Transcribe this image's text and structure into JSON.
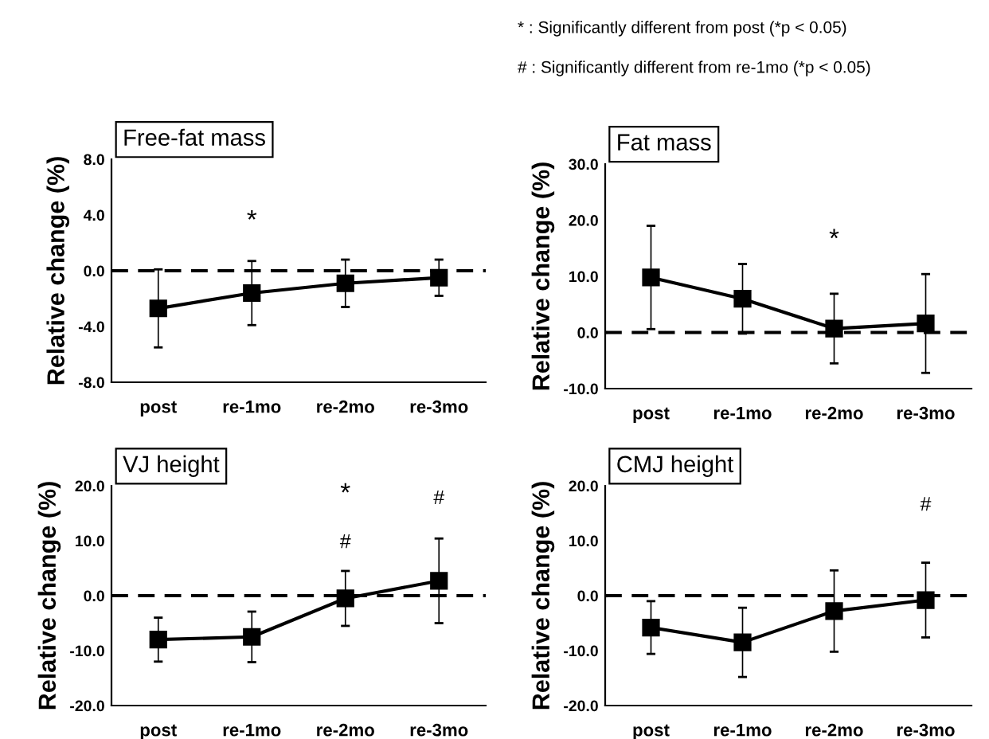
{
  "chart_data": [
    {
      "type": "line",
      "title": "Free-fat mass",
      "ylabel": "Relative change (%)",
      "categories": [
        "post",
        "re-1mo",
        "re-2mo",
        "re-3mo"
      ],
      "series": [
        {
          "color": "#000000",
          "values": [
            -2.7,
            -1.6,
            -0.9,
            -0.5
          ],
          "errors": [
            2.8,
            2.3,
            1.7,
            1.3
          ]
        }
      ],
      "ylim": [
        -8,
        8
      ],
      "yticks": [
        {
          "value": -8,
          "label": "-8.0"
        },
        {
          "value": -4,
          "label": "-4.0"
        },
        {
          "value": 0,
          "label": "0.0"
        },
        {
          "value": 4,
          "label": "4.0"
        },
        {
          "value": 8,
          "label": "8.0"
        }
      ],
      "ref_lines": [
        {
          "axis": "y",
          "value": 0,
          "line_style": "dashed",
          "color": "#000000"
        }
      ],
      "annotations": [
        "*"
      ],
      "marker": "square",
      "line_style": "solid",
      "grid": false
    },
    {
      "type": "line",
      "title": "Fat mass",
      "ylabel": "Relative change (%)",
      "categories": [
        "post",
        "re-1mo",
        "re-2mo",
        "re-3mo"
      ],
      "series": [
        {
          "color": "#000000",
          "values": [
            9.8,
            6.0,
            0.7,
            1.6
          ],
          "errors": [
            9.2,
            6.2,
            6.2,
            8.8
          ]
        }
      ],
      "ylim": [
        -10,
        30
      ],
      "yticks": [
        {
          "value": -10,
          "label": "-10.0"
        },
        {
          "value": 0,
          "label": "0.0"
        },
        {
          "value": 10,
          "label": "10.0"
        },
        {
          "value": 20,
          "label": "20.0"
        },
        {
          "value": 30,
          "label": "30.0"
        }
      ],
      "ref_lines": [
        {
          "axis": "y",
          "value": 0,
          "line_style": "dashed",
          "color": "#000000"
        }
      ],
      "annotations": [
        "*",
        "* : Significantly different from post (*p < 0.05)",
        "# : Significantly different from re-1mo (*p < 0.05)"
      ],
      "marker": "square",
      "line_style": "solid",
      "grid": false
    },
    {
      "type": "line",
      "title": "VJ height",
      "ylabel": "Relative change (%)",
      "categories": [
        "post",
        "re-1mo",
        "re-2mo",
        "re-3mo"
      ],
      "series": [
        {
          "color": "#000000",
          "values": [
            -8.0,
            -7.5,
            -0.5,
            2.7
          ],
          "errors": [
            4.0,
            4.6,
            5.0,
            7.7
          ]
        }
      ],
      "ylim": [
        -20,
        20
      ],
      "yticks": [
        {
          "value": -20,
          "label": "-20.0"
        },
        {
          "value": -10,
          "label": "-10.0"
        },
        {
          "value": 0,
          "label": "0.0"
        },
        {
          "value": 10,
          "label": "10.0"
        },
        {
          "value": 20,
          "label": "20.0"
        }
      ],
      "ref_lines": [
        {
          "axis": "y",
          "value": 0,
          "line_style": "dashed",
          "color": "#000000"
        }
      ],
      "annotations": [
        "*",
        "#",
        "#"
      ],
      "marker": "square",
      "line_style": "solid",
      "grid": false
    },
    {
      "type": "line",
      "title": "CMJ height",
      "ylabel": "Relative change (%)",
      "categories": [
        "post",
        "re-1mo",
        "re-2mo",
        "re-3mo"
      ],
      "series": [
        {
          "color": "#000000",
          "values": [
            -5.8,
            -8.5,
            -2.8,
            -0.8
          ],
          "errors": [
            4.8,
            6.3,
            7.4,
            6.8
          ]
        }
      ],
      "ylim": [
        -20,
        20
      ],
      "yticks": [
        {
          "value": -20,
          "label": "-20.0"
        },
        {
          "value": -10,
          "label": "-10.0"
        },
        {
          "value": 0,
          "label": "0.0"
        },
        {
          "value": 10,
          "label": "10.0"
        },
        {
          "value": 20,
          "label": "20.0"
        }
      ],
      "ref_lines": [
        {
          "axis": "y",
          "value": 0,
          "line_style": "dashed",
          "color": "#000000"
        }
      ],
      "annotations": [
        "#"
      ],
      "marker": "square",
      "line_style": "solid",
      "grid": false
    }
  ]
}
